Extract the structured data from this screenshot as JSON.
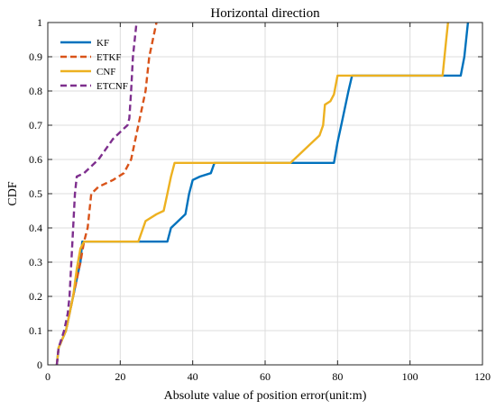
{
  "chart_data": {
    "type": "line",
    "title": "Horizontal direction",
    "xlabel": "Absolute value of position error(unit:m)",
    "ylabel": "CDF",
    "xlim": [
      0,
      120
    ],
    "ylim": [
      0,
      1
    ],
    "xticks": [
      0,
      20,
      40,
      60,
      80,
      100,
      120
    ],
    "yticks": [
      0,
      0.1,
      0.2,
      0.3,
      0.4,
      0.5,
      0.6,
      0.7,
      0.8,
      0.9,
      1
    ],
    "xtick_labels": [
      "0",
      "20",
      "40",
      "60",
      "80",
      "100",
      "120"
    ],
    "ytick_labels": [
      "0",
      "0.1",
      "0.2",
      "0.3",
      "0.4",
      "0.5",
      "0.6",
      "0.7",
      "0.8",
      "0.9",
      "1"
    ],
    "grid": true,
    "legend_position": "top-left",
    "series": [
      {
        "name": "KF",
        "color": "#0072BD",
        "dash": "solid",
        "points": [
          [
            2.5,
            0
          ],
          [
            3,
            0.05
          ],
          [
            5,
            0.1
          ],
          [
            6,
            0.15
          ],
          [
            7,
            0.2
          ],
          [
            8,
            0.25
          ],
          [
            9,
            0.3
          ],
          [
            9.5,
            0.36
          ],
          [
            33,
            0.36
          ],
          [
            34,
            0.4
          ],
          [
            36,
            0.42
          ],
          [
            38,
            0.44
          ],
          [
            39,
            0.5
          ],
          [
            40,
            0.54
          ],
          [
            42,
            0.55
          ],
          [
            45,
            0.56
          ],
          [
            46,
            0.59
          ],
          [
            79,
            0.59
          ],
          [
            80,
            0.65
          ],
          [
            81,
            0.7
          ],
          [
            82,
            0.75
          ],
          [
            83,
            0.8
          ],
          [
            84,
            0.845
          ],
          [
            114,
            0.845
          ],
          [
            115,
            0.9
          ],
          [
            116,
            1
          ]
        ]
      },
      {
        "name": "ETKF",
        "color": "#D95319",
        "dash": "dashed",
        "points": [
          [
            2.5,
            0
          ],
          [
            3,
            0.05
          ],
          [
            5,
            0.1
          ],
          [
            6,
            0.15
          ],
          [
            7,
            0.2
          ],
          [
            8,
            0.25
          ],
          [
            9,
            0.3
          ],
          [
            10,
            0.36
          ],
          [
            11,
            0.4
          ],
          [
            12,
            0.5
          ],
          [
            14,
            0.52
          ],
          [
            18,
            0.54
          ],
          [
            21,
            0.56
          ],
          [
            23,
            0.6
          ],
          [
            24,
            0.65
          ],
          [
            25,
            0.7
          ],
          [
            26,
            0.75
          ],
          [
            27,
            0.8
          ],
          [
            28,
            0.9
          ],
          [
            29,
            0.95
          ],
          [
            30,
            1
          ]
        ]
      },
      {
        "name": "CNF",
        "color": "#EDB120",
        "dash": "solid",
        "points": [
          [
            2.5,
            0
          ],
          [
            3,
            0.05
          ],
          [
            5,
            0.1
          ],
          [
            6,
            0.15
          ],
          [
            7,
            0.2
          ],
          [
            8,
            0.28
          ],
          [
            9,
            0.34
          ],
          [
            10,
            0.36
          ],
          [
            25,
            0.36
          ],
          [
            27,
            0.42
          ],
          [
            30,
            0.44
          ],
          [
            32,
            0.45
          ],
          [
            33,
            0.5
          ],
          [
            34,
            0.55
          ],
          [
            35,
            0.59
          ],
          [
            67,
            0.59
          ],
          [
            69,
            0.61
          ],
          [
            72,
            0.64
          ],
          [
            75,
            0.67
          ],
          [
            76,
            0.7
          ],
          [
            76.5,
            0.76
          ],
          [
            78,
            0.77
          ],
          [
            79,
            0.79
          ],
          [
            80,
            0.845
          ],
          [
            109,
            0.845
          ],
          [
            110,
            0.95
          ],
          [
            110.5,
            1
          ]
        ]
      },
      {
        "name": "ETCNF",
        "color": "#7E2F8E",
        "dash": "dashed",
        "points": [
          [
            2.5,
            0
          ],
          [
            3,
            0.05
          ],
          [
            4.5,
            0.1
          ],
          [
            5.5,
            0.15
          ],
          [
            6,
            0.2
          ],
          [
            6.5,
            0.3
          ],
          [
            7,
            0.4
          ],
          [
            7.5,
            0.5
          ],
          [
            8,
            0.55
          ],
          [
            10,
            0.56
          ],
          [
            12,
            0.58
          ],
          [
            14,
            0.6
          ],
          [
            16,
            0.63
          ],
          [
            18,
            0.66
          ],
          [
            21,
            0.69
          ],
          [
            22,
            0.7
          ],
          [
            22.5,
            0.72
          ],
          [
            23,
            0.8
          ],
          [
            23.5,
            0.9
          ],
          [
            24,
            0.95
          ],
          [
            24.5,
            1
          ]
        ]
      }
    ]
  }
}
